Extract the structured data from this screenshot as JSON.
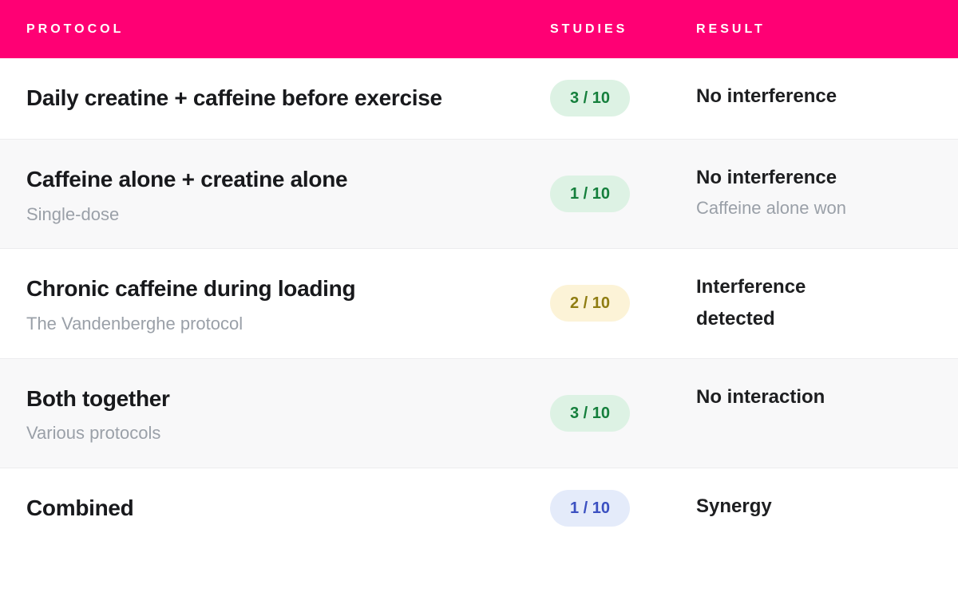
{
  "colors": {
    "header_bg": "#ff0074",
    "header_text": "#ffffff",
    "row_alt_bg": "#f8f8f9",
    "divider": "#ececee",
    "title_text": "#18191c",
    "muted_text": "#9aa0a8",
    "badge_green_bg": "#ddf2e4",
    "badge_green_text": "#157f3c",
    "badge_yellow_bg": "#fcf3d7",
    "badge_yellow_text": "#8f7d12",
    "badge_blue_bg": "#e4ebfa",
    "badge_blue_text": "#3b50c1"
  },
  "table": {
    "columns": [
      {
        "label": "PROTOCOL"
      },
      {
        "label": "STUDIES"
      },
      {
        "label": "RESULT"
      }
    ],
    "rows": [
      {
        "protocol": "Daily creatine + caffeine before exercise",
        "protocol_sub": "",
        "studies": "3 / 10",
        "studies_variant": "green",
        "result": "No interference",
        "result_sub": ""
      },
      {
        "protocol": "Caffeine alone + creatine alone",
        "protocol_sub": "Single-dose",
        "studies": "1 / 10",
        "studies_variant": "green",
        "result": "No interference",
        "result_sub": "Caffeine alone won"
      },
      {
        "protocol": "Chronic caffeine during loading",
        "protocol_sub": "The Vandenberghe protocol",
        "studies": "2 / 10",
        "studies_variant": "yellow",
        "result": "Interference detected",
        "result_sub": ""
      },
      {
        "protocol": "Both together",
        "protocol_sub": "Various protocols",
        "studies": "3 / 10",
        "studies_variant": "green",
        "result": "No interaction",
        "result_sub": ""
      },
      {
        "protocol": "Combined",
        "protocol_sub": "",
        "studies": "1 / 10",
        "studies_variant": "blue",
        "result": "Synergy",
        "result_sub": ""
      }
    ]
  }
}
